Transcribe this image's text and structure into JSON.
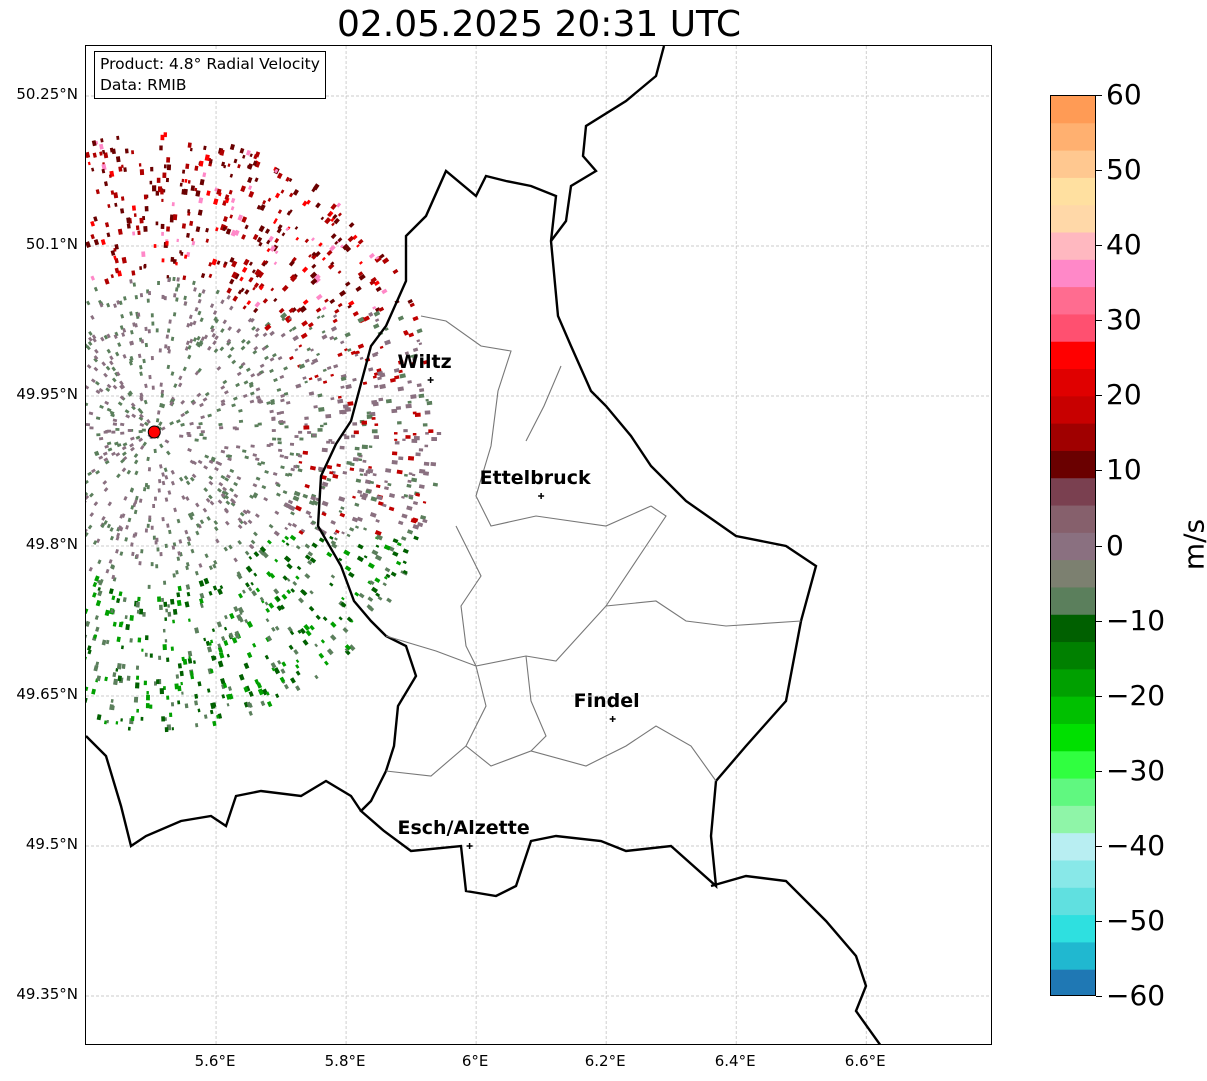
{
  "title": "02.05.2025 20:31 UTC",
  "info": {
    "product": "Product: 4.8° Radial Velocity",
    "data_source": "Data: RMIB"
  },
  "map": {
    "lat_ticks": [
      "50.25°N",
      "50.1°N",
      "49.95°N",
      "49.8°N",
      "49.65°N",
      "49.5°N",
      "49.35°N"
    ],
    "lon_ticks": [
      "5.6°E",
      "5.8°E",
      "6°E",
      "6.2°E",
      "6.4°E",
      "6.6°E"
    ],
    "cities": [
      {
        "name": "Wiltz",
        "lon": 5.93,
        "lat": 49.966
      },
      {
        "name": "Ettelbruck",
        "lon": 6.1,
        "lat": 49.85
      },
      {
        "name": "Findel",
        "lon": 6.21,
        "lat": 49.627
      },
      {
        "name": "Esch/Alzette",
        "lon": 5.99,
        "lat": 49.5
      }
    ],
    "radar_site": {
      "lon": 5.505,
      "lat": 49.914
    },
    "extent": {
      "lon_min": 5.4,
      "lon_max": 6.795,
      "lat_min": 49.3,
      "lat_max": 50.3
    }
  },
  "colorbar": {
    "unit": "m/s",
    "min": -60,
    "max": 60,
    "tick_labels": [
      "60",
      "50",
      "40",
      "30",
      "20",
      "10",
      "0",
      "−10",
      "−20",
      "−30",
      "−40",
      "−50",
      "−60"
    ],
    "colors": {
      "blue_low": "#1f78b4",
      "cyan": "#2ee0e0",
      "light_cyan": "#b8eef2",
      "light_green": "#8ff5a8",
      "green": "#00e000",
      "dark_green": "#006000",
      "grey_green": "#5b7f5c",
      "grey": "#8a7080",
      "dark_red": "#6a0000",
      "red": "#ff0000",
      "pink": "#ff88c8",
      "peach": "#ffe0a0",
      "orange": "#ff9b55"
    }
  }
}
